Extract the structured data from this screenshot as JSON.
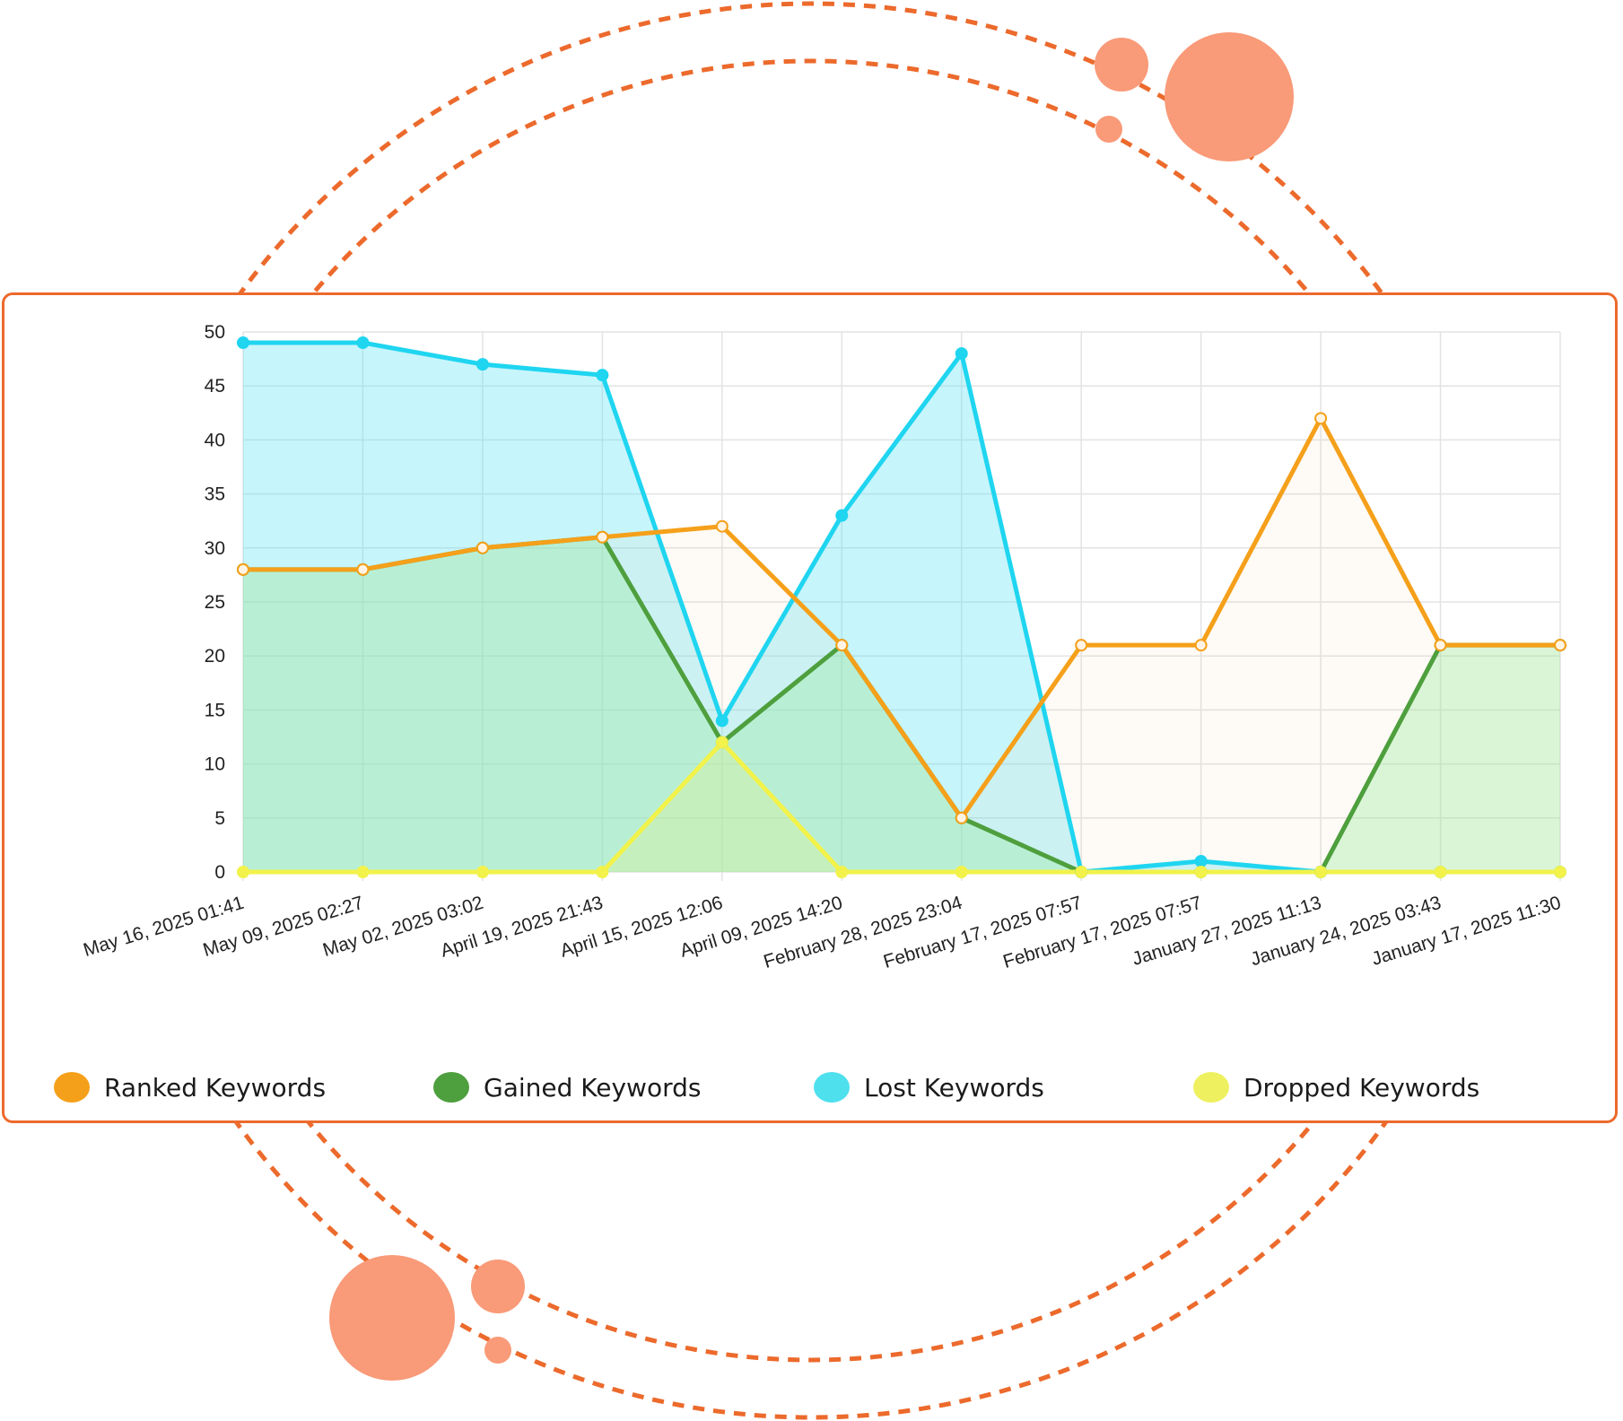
{
  "chart_data": {
    "type": "area",
    "title": "",
    "xlabel": "",
    "ylabel": "",
    "ylim": [
      0,
      50
    ],
    "yticks": [
      0,
      5,
      10,
      15,
      20,
      25,
      30,
      35,
      40,
      45,
      50
    ],
    "grid": true,
    "legend_position": "bottom",
    "categories": [
      "May 16, 2025 01:41",
      "May 09, 2025 02:27",
      "May 02, 2025 03:02",
      "April 19, 2025 21:43",
      "April 15, 2025 12:06",
      "April 09, 2025 14:20",
      "February 28, 2025 23:04",
      "February 17, 2025 07:57",
      "February 17, 2025 07:57",
      "January 27, 2025 11:13",
      "January 24, 2025 03:43",
      "January 17, 2025 11:30"
    ],
    "series": [
      {
        "name": "Lost Keywords",
        "color": "#1fd5f0",
        "fill": "rgba(80, 225, 245, 0.32)",
        "values": [
          49,
          49,
          47,
          46,
          14,
          33,
          48,
          0,
          1,
          0,
          0,
          0
        ]
      },
      {
        "name": "Gained Keywords",
        "color": "#4e9f3d",
        "fill": "rgba(130, 240, 150, 0.32)",
        "values": [
          28,
          28,
          30,
          31,
          12,
          21,
          5,
          0,
          0,
          0,
          21,
          21
        ]
      },
      {
        "name": "Ranked Keywords",
        "color": "#f5a01a",
        "fill": "rgba(250, 205, 160, 0.10)",
        "values": [
          28,
          28,
          30,
          31,
          32,
          21,
          5,
          21,
          21,
          42,
          21,
          21
        ]
      },
      {
        "name": "Dropped Keywords",
        "color": "#f2f24a",
        "fill": "rgba(235, 245, 120, 0.25)",
        "values": [
          0,
          0,
          0,
          0,
          12,
          0,
          0,
          0,
          0,
          0,
          0,
          0
        ]
      }
    ]
  },
  "legend": [
    {
      "label": "Ranked Keywords",
      "color": "#f5a01a"
    },
    {
      "label": "Gained Keywords",
      "color": "#4e9f3d"
    },
    {
      "label": "Lost Keywords",
      "color": "#4fe0ee"
    },
    {
      "label": "Dropped Keywords",
      "color": "#eef060"
    }
  ],
  "decoration": {
    "ring_color": "#ec6a2c",
    "bubble_color": "#f99a78"
  }
}
